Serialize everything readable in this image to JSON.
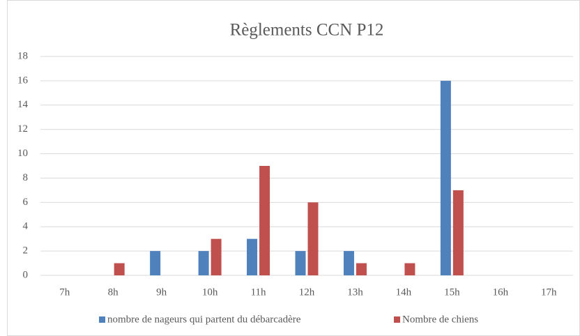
{
  "chart_data": {
    "type": "bar",
    "title": "Règlements CCN P12",
    "categories": [
      "7h",
      "8h",
      "9h",
      "10h",
      "11h",
      "12h",
      "13h",
      "14h",
      "15h",
      "16h",
      "17h"
    ],
    "series": [
      {
        "name": "nombre de nageurs qui partent du débarcadère",
        "color": "#4f81bd",
        "values": [
          0,
          0,
          2,
          2,
          3,
          2,
          2,
          0,
          16,
          0,
          0
        ]
      },
      {
        "name": "Nombre de chiens",
        "color": "#c0504d",
        "values": [
          0,
          1,
          0,
          3,
          9,
          6,
          1,
          1,
          7,
          0,
          0
        ]
      }
    ],
    "ylim": [
      0,
      18
    ],
    "yticks": [
      0,
      2,
      4,
      6,
      8,
      10,
      12,
      14,
      16,
      18
    ],
    "grid": true,
    "legend": "bottom"
  }
}
